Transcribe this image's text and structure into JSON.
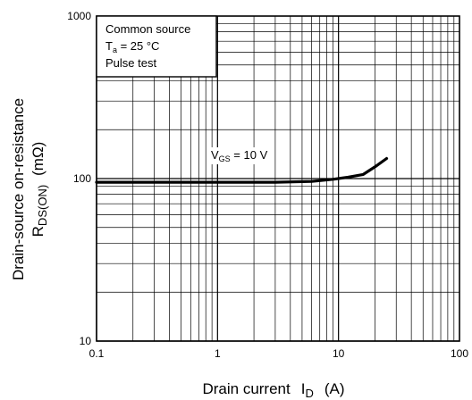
{
  "chart_data": {
    "type": "line",
    "x_scale": "log",
    "y_scale": "log",
    "xlim": [
      0.1,
      100
    ],
    "ylim": [
      10,
      1000
    ],
    "x_ticks": [
      "0.1",
      "1",
      "10",
      "100"
    ],
    "y_ticks": [
      "10",
      "100",
      "1000"
    ],
    "xlabel": {
      "main": "Drain current",
      "symbol": "I",
      "subscript": "D",
      "unit": "(A)"
    },
    "ylabel": {
      "line1": "Drain-source on-resistance",
      "symbol": "R",
      "subscript": "DS(ON)",
      "unit": "(mΩ)"
    },
    "conditions": {
      "line1": "Common source",
      "ta_symbol": "T",
      "ta_subscript": "a",
      "ta_value": " = 25 °C",
      "line3": "Pulse test"
    },
    "grid": true,
    "series": [
      {
        "name": "V_GS = 10 V",
        "label_symbol": "V",
        "label_subscript": "GS",
        "label_value": " = 10 V",
        "x": [
          0.1,
          0.3,
          1,
          3,
          6,
          9,
          12,
          16,
          20,
          25
        ],
        "y": [
          95,
          95,
          95,
          95,
          96,
          99,
          102,
          106,
          118,
          133
        ]
      }
    ]
  }
}
